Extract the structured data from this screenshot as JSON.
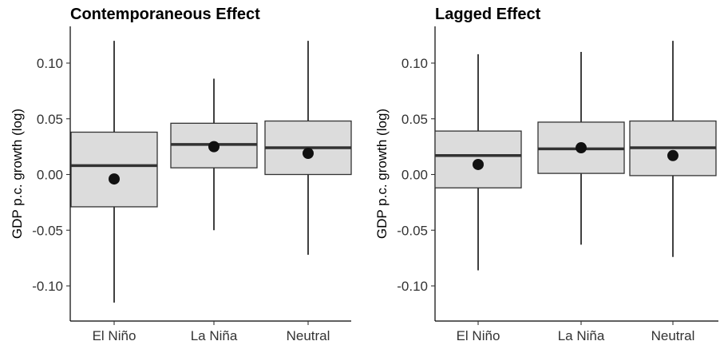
{
  "chart_data": [
    {
      "type": "boxplot",
      "title": "Contemporaneous Effect",
      "xlabel": "",
      "ylabel": "GDP p.c. growth (log)",
      "ylim": [
        -0.13,
        0.13
      ],
      "yticks": [
        0.1,
        0.05,
        0.0,
        -0.05,
        -0.1
      ],
      "ytick_labels": [
        "0.10",
        "0.05",
        "0.00",
        "-0.05",
        "-0.10"
      ],
      "categories": [
        "El Niño",
        "La Niña",
        "Neutral"
      ],
      "boxes": [
        {
          "whisker_low": -0.115,
          "q1": -0.029,
          "median": 0.008,
          "q3": 0.038,
          "whisker_high": 0.12,
          "mean": -0.004
        },
        {
          "whisker_low": -0.05,
          "q1": 0.006,
          "median": 0.027,
          "q3": 0.046,
          "whisker_high": 0.086,
          "mean": 0.025
        },
        {
          "whisker_low": -0.072,
          "q1": 0.0,
          "median": 0.024,
          "q3": 0.048,
          "whisker_high": 0.12,
          "mean": 0.019
        }
      ],
      "grid": false,
      "legend": "none"
    },
    {
      "type": "boxplot",
      "title": "Lagged Effect",
      "xlabel": "",
      "ylabel": "GDP p.c. growth (log)",
      "ylim": [
        -0.13,
        0.13
      ],
      "yticks": [
        0.1,
        0.05,
        0.0,
        -0.05,
        -0.1
      ],
      "ytick_labels": [
        "0.10",
        "0.05",
        "0.00",
        "-0.05",
        "-0.10"
      ],
      "categories": [
        "El Niño",
        "La Niña",
        "Neutral"
      ],
      "boxes": [
        {
          "whisker_low": -0.086,
          "q1": -0.012,
          "median": 0.017,
          "q3": 0.039,
          "whisker_high": 0.108,
          "mean": 0.009
        },
        {
          "whisker_low": -0.063,
          "q1": 0.001,
          "median": 0.023,
          "q3": 0.047,
          "whisker_high": 0.11,
          "mean": 0.024
        },
        {
          "whisker_low": -0.074,
          "q1": -0.001,
          "median": 0.024,
          "q3": 0.048,
          "whisker_high": 0.12,
          "mean": 0.017
        }
      ],
      "grid": false,
      "legend": "none"
    }
  ]
}
